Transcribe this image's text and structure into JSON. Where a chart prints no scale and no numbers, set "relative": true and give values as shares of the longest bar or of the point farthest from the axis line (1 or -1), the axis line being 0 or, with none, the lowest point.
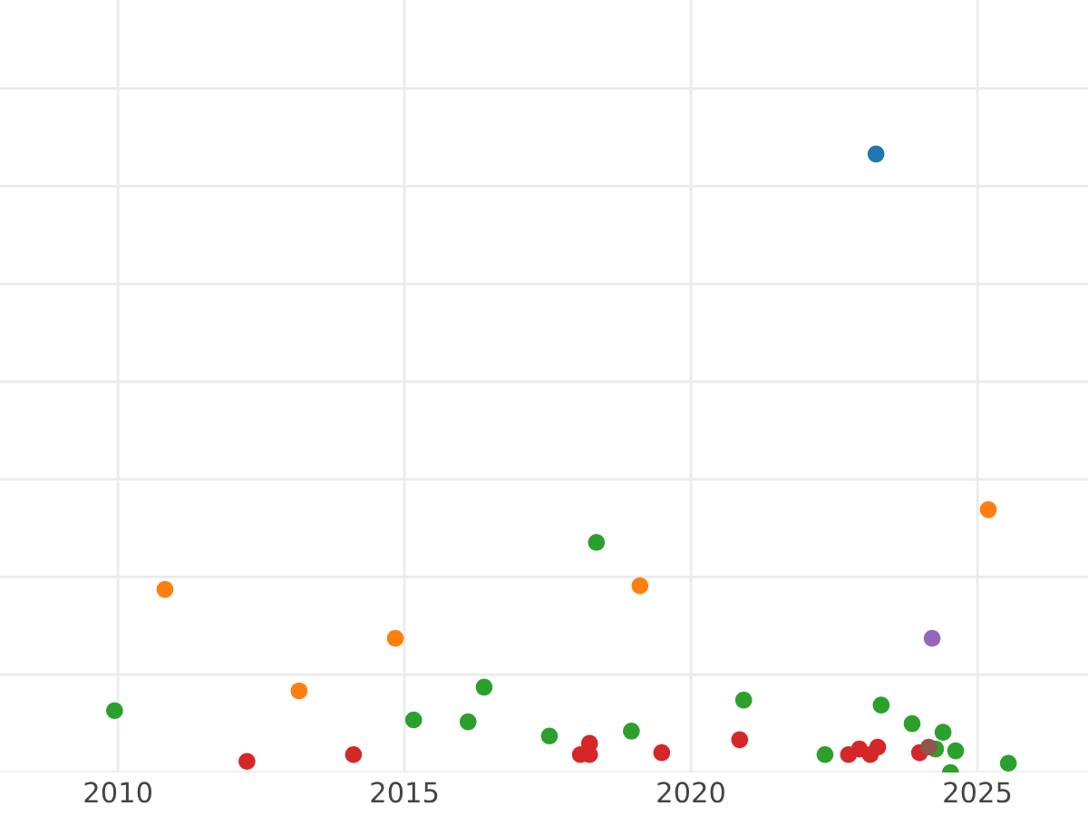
{
  "chart_data": {
    "type": "scatter",
    "relative": true,
    "grid": true,
    "tick_labels": "x",
    "marker": "circle",
    "xlim": [
      2007.94,
      2026.93
    ],
    "xticks": [
      2010,
      2015,
      2020,
      2025
    ],
    "series": [
      {
        "color": "#1f77b4",
        "x": [
          2023.23
        ],
        "values": [
          1.0
        ]
      },
      {
        "color": "#ff7f0e",
        "x": [
          2010.82,
          2013.16,
          2014.84,
          2019.11,
          2025.19
        ],
        "values": [
          0.296,
          0.132,
          0.217,
          0.302,
          0.425
        ]
      },
      {
        "color": "#2ca02c",
        "x": [
          2009.94,
          2015.16,
          2016.11,
          2016.39,
          2017.53,
          2018.35,
          2018.96,
          2020.92,
          2022.34,
          2023.32,
          2023.86,
          2024.27,
          2024.4,
          2024.53,
          2024.62,
          2025.54
        ],
        "values": [
          0.1,
          0.085,
          0.082,
          0.138,
          0.059,
          0.372,
          0.067,
          0.117,
          0.029,
          0.109,
          0.079,
          0.038,
          0.065,
          0.0,
          0.035,
          0.015
        ]
      },
      {
        "color": "#d62728",
        "x": [
          2012.25,
          2014.11,
          2018.07,
          2018.23,
          2018.23,
          2019.49,
          2020.85,
          2022.75,
          2022.94,
          2023.13,
          2023.26,
          2023.99
        ],
        "values": [
          0.018,
          0.029,
          0.029,
          0.047,
          0.029,
          0.032,
          0.053,
          0.029,
          0.038,
          0.029,
          0.041,
          0.032
        ]
      },
      {
        "color": "#9467bd",
        "x": [
          2024.21
        ],
        "values": [
          0.217
        ]
      },
      {
        "color": "#8c564b",
        "x": [
          2024.15
        ],
        "values": [
          0.041
        ]
      }
    ]
  }
}
